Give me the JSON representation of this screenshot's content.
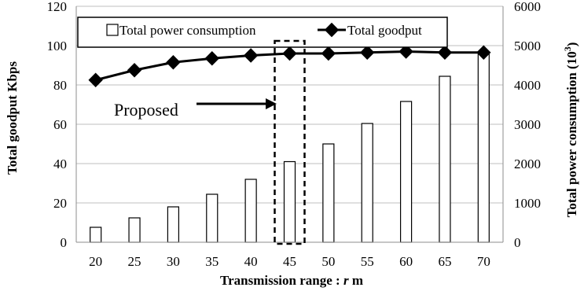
{
  "chart_data": {
    "type": "bar+line",
    "categories": [
      "20",
      "25",
      "30",
      "35",
      "40",
      "45",
      "50",
      "55",
      "60",
      "65",
      "70"
    ],
    "series": [
      {
        "name": "Total power consumption",
        "type": "bar",
        "axis": "right",
        "values": [
          380,
          620,
          900,
          1220,
          1600,
          2050,
          2500,
          3020,
          3580,
          4220,
          4800
        ]
      },
      {
        "name": "Total goodput",
        "type": "line",
        "axis": "left",
        "values": [
          82.5,
          87.5,
          91.5,
          93.5,
          95.0,
          96.0,
          96.0,
          96.5,
          97.0,
          96.5,
          96.5
        ]
      }
    ],
    "xlabel_prefix": "Transmission range : ",
    "xlabel_var": "r",
    "xlabel_suffix": " m",
    "ylabel_left": "Total goodput Kbps",
    "ylabel_right_prefix": "Total power consumption (10",
    "ylabel_right_sup": "3",
    "ylabel_right_suffix": ")",
    "ylim_left": [
      0,
      120
    ],
    "ylim_right": [
      0,
      6000
    ],
    "yticks_left": [
      "0",
      "20",
      "40",
      "60",
      "80",
      "100",
      "120"
    ],
    "yticks_right": [
      "0",
      "1000",
      "2000",
      "3000",
      "4000",
      "5000",
      "6000"
    ],
    "legend_placement": "top-center",
    "grid": "horizontal",
    "annotation": {
      "text": "Proposed",
      "highlight_category": "45"
    },
    "colors": {
      "bar_fill": "#ffffff",
      "bar_stroke": "#000000",
      "line": "#000000",
      "grid": "#bfbfbf"
    }
  }
}
